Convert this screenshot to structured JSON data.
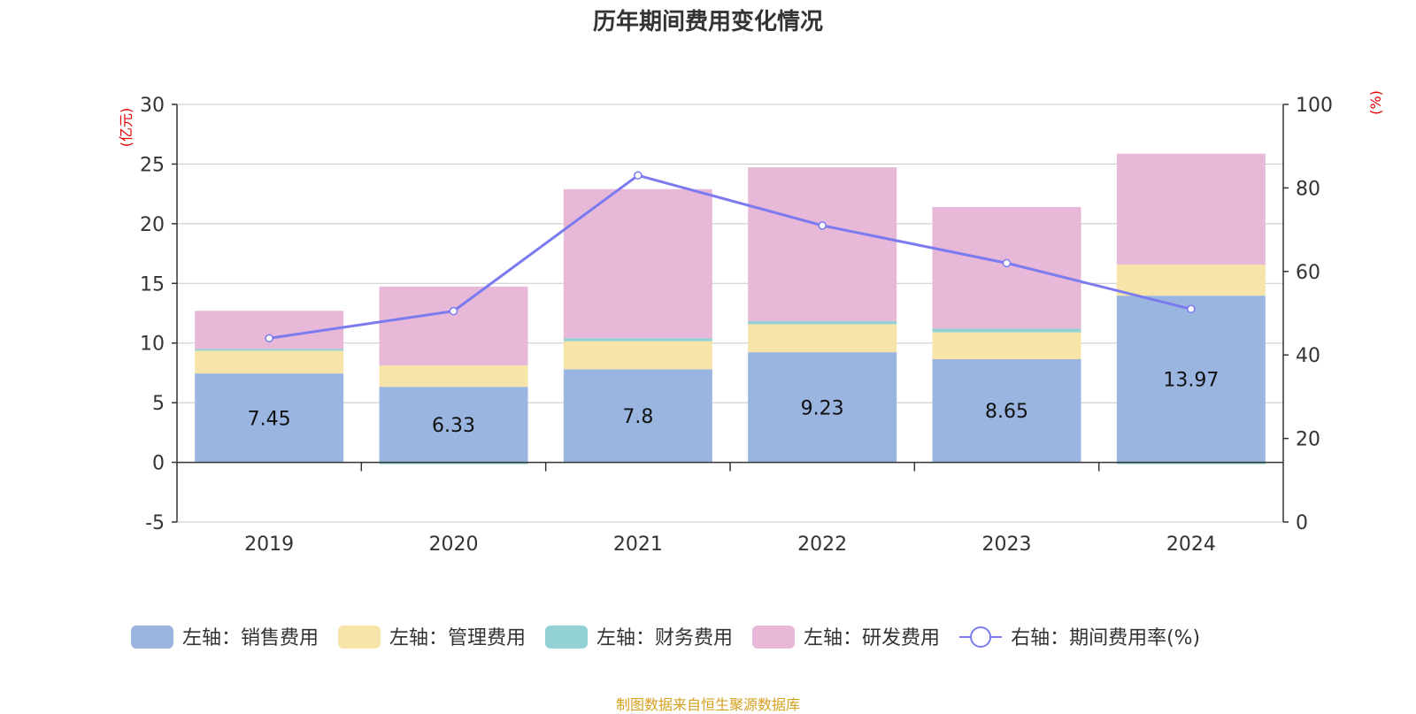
{
  "title": "历年期间费用变化情况",
  "source": "制图数据来自恒生聚源数据库",
  "colors": {
    "sales": "#9ab6e0",
    "admin": "#f7e4a8",
    "finance": "#92d2d4",
    "rd": "#e7b8d8",
    "rate_line": "#7b7bef"
  },
  "chart_data": {
    "type": "bar",
    "stacked": true,
    "title": "历年期间费用变化情况",
    "categories": [
      "2019",
      "2020",
      "2021",
      "2022",
      "2023",
      "2024"
    ],
    "left_axis": {
      "unit": "(亿元)",
      "ylim": [
        -5,
        30
      ],
      "ticks": [
        -5,
        0,
        5,
        10,
        15,
        20,
        25,
        30
      ]
    },
    "right_axis": {
      "unit": "(%)",
      "ylim": [
        0,
        100
      ],
      "ticks": [
        0,
        20,
        40,
        60,
        80,
        100
      ]
    },
    "grid": true,
    "legend_position": "bottom",
    "series": [
      {
        "name": "左轴：销售费用",
        "axis": "left",
        "type": "bar",
        "values": [
          7.45,
          6.33,
          7.8,
          9.23,
          8.65,
          13.97
        ],
        "show_labels": true
      },
      {
        "name": "左轴：管理费用",
        "axis": "left",
        "type": "bar",
        "values": [
          2.0,
          1.8,
          2.35,
          2.35,
          2.25,
          2.6
        ]
      },
      {
        "name": "左轴：财务费用",
        "axis": "left",
        "type": "bar",
        "values": [
          0.05,
          -0.15,
          0.25,
          0.25,
          0.3,
          -0.15
        ]
      },
      {
        "name": "左轴：研发费用",
        "axis": "left",
        "type": "bar",
        "values": [
          3.2,
          6.6,
          12.5,
          12.9,
          10.2,
          9.3
        ]
      },
      {
        "name": "右轴：期间费用率(%)",
        "axis": "right",
        "type": "line",
        "values": [
          44,
          50.5,
          83,
          71,
          62,
          51
        ]
      }
    ]
  }
}
